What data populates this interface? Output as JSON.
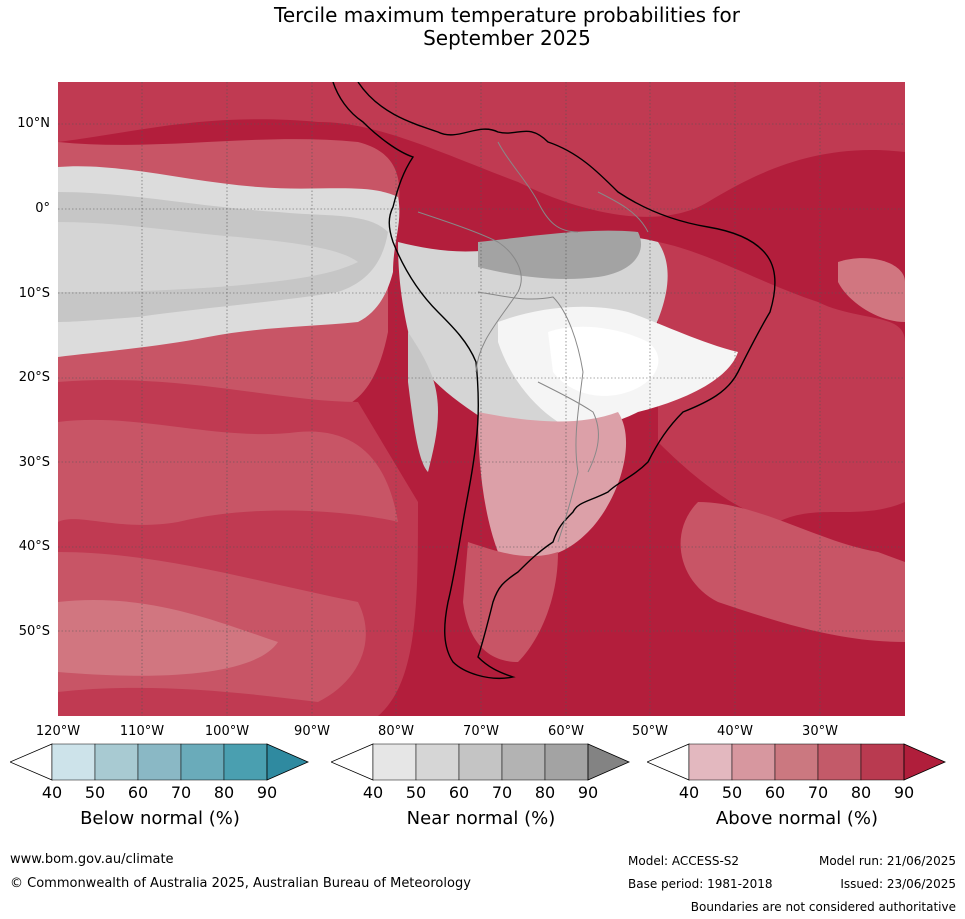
{
  "title_line1": "Tercile maximum temperature probabilities for",
  "title_line2": "September 2025",
  "lat_labels": [
    "10°N",
    "0°",
    "10°S",
    "20°S",
    "30°S",
    "40°S",
    "50°S"
  ],
  "lon_labels": [
    "120°W",
    "110°W",
    "100°W",
    "90°W",
    "80°W",
    "70°W",
    "60°W",
    "50°W",
    "40°W",
    "30°W"
  ],
  "colorbars": [
    {
      "label": "Below normal (%)",
      "ticks": [
        "40",
        "50",
        "60",
        "70",
        "80",
        "90"
      ],
      "colors": [
        "#ffffff",
        "#cde3ea",
        "#a8cad2",
        "#8ab8c5",
        "#6aabba",
        "#4a9fb0",
        "#2f8aa0"
      ]
    },
    {
      "label": "Near normal (%)",
      "ticks": [
        "40",
        "50",
        "60",
        "70",
        "80",
        "90"
      ],
      "colors": [
        "#ffffff",
        "#e6e6e6",
        "#d6d6d6",
        "#c4c4c4",
        "#b3b3b3",
        "#a3a3a3",
        "#838383"
      ]
    },
    {
      "label": "Above normal (%)",
      "ticks": [
        "40",
        "50",
        "60",
        "70",
        "80",
        "90"
      ],
      "colors": [
        "#ffffff",
        "#e3b8bf",
        "#d7979f",
        "#cb7880",
        "#c35a69",
        "#b93a50",
        "#b01e3b"
      ]
    }
  ],
  "map_colors": {
    "above_90": "#b31e3c",
    "above_80": "#c03a52",
    "above_70": "#c85566",
    "above_60": "#d17680",
    "above_50": "#dca0a8",
    "near_40": "#e6e6e6",
    "near_50": "#d5d5d5",
    "near_70": "#c3c3c3",
    "near_90": "#9f9f9f",
    "neutral": "#ffffff"
  },
  "footer": {
    "website": "www.bom.gov.au/climate",
    "copyright": "© Commonwealth of Australia 2025, Australian Bureau of Meteorology",
    "model": "Model: ACCESS-S2",
    "model_run": "Model run: 21/06/2025",
    "base_period": "Base period: 1981-2018",
    "issued": "Issued: 23/06/2025",
    "disclaimer": "Boundaries are not considered authoritative"
  }
}
